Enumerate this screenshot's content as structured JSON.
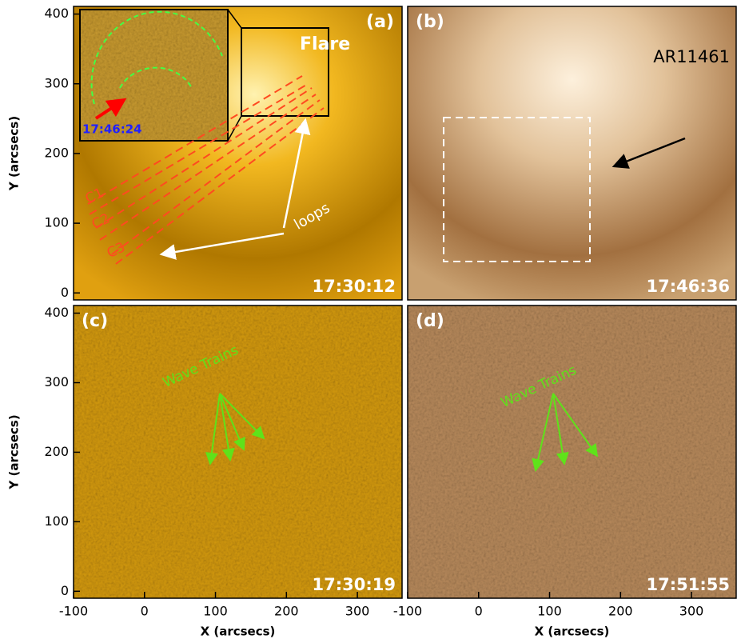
{
  "chart_data": [
    {
      "type": "image",
      "label": "(a)",
      "time": "17:30:12",
      "ylabel": "Y (arcsecs)",
      "xlim": [
        -100,
        363
      ],
      "ylim": [
        -10,
        411
      ],
      "yticks": [
        0,
        100,
        200,
        300,
        400
      ],
      "annotations": [
        "Flare",
        "loops",
        "C1",
        "C2",
        "C3",
        "17:46:24"
      ]
    },
    {
      "type": "image",
      "label": "(b)",
      "time": "17:46:36",
      "xlim": [
        -100,
        363
      ],
      "ylim": [
        -10,
        411
      ],
      "annotations": [
        "AR11461"
      ]
    },
    {
      "type": "image",
      "label": "(c)",
      "time": "17:30:19",
      "xlabel": "X (arcsecs)",
      "ylabel": "Y (arcsecs)",
      "xlim": [
        -100,
        363
      ],
      "ylim": [
        -10,
        411
      ],
      "xticks": [
        -100,
        0,
        100,
        200,
        300
      ],
      "yticks": [
        0,
        100,
        200,
        300,
        400
      ],
      "annotations": [
        "Wave Trains"
      ]
    },
    {
      "type": "image",
      "label": "(d)",
      "time": "17:51:55",
      "xlabel": "X (arcsecs)",
      "xlim": [
        -100,
        363
      ],
      "ylim": [
        -10,
        411
      ],
      "xticks": [
        -100,
        0,
        100,
        200,
        300
      ],
      "annotations": [
        "Wave Trains"
      ]
    }
  ]
}
